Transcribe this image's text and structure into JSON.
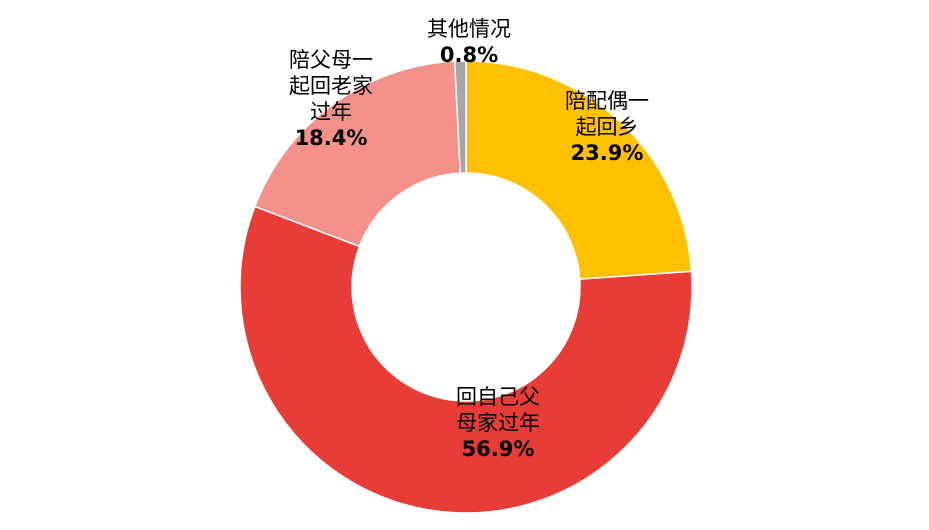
{
  "chart_data": {
    "type": "pie",
    "donut": true,
    "start_angle_deg": 0,
    "direction": "clockwise",
    "slices": [
      {
        "label": [
          "陪配偶一",
          "起回乡"
        ],
        "value": 23.9,
        "value_label": "23.9%",
        "color": "#FFC000"
      },
      {
        "label": [
          "回自己父",
          "母家过年"
        ],
        "value": 56.9,
        "value_label": "56.9%",
        "color": "#E83C36"
      },
      {
        "label": [
          "陪父母一",
          "起回老家",
          "过年"
        ],
        "value": 18.4,
        "value_label": "18.4%",
        "color": "#F4918B"
      },
      {
        "label": [
          "其他情况"
        ],
        "value": 0.8,
        "value_label": "0.8%",
        "color": "#A6A6A6"
      }
    ]
  }
}
